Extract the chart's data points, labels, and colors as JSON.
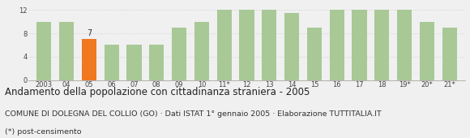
{
  "categories": [
    "2003",
    "04",
    "05",
    "06",
    "07",
    "08",
    "09",
    "10",
    "11*",
    "12",
    "13",
    "14",
    "15",
    "16",
    "17",
    "18",
    "19*",
    "20*",
    "21*"
  ],
  "values": [
    10,
    10,
    7,
    6,
    6,
    6,
    9,
    10,
    12,
    12,
    12,
    11.5,
    9,
    12,
    12,
    12,
    12,
    10,
    9
  ],
  "highlight_index": 2,
  "highlight_value": 7,
  "bar_color": "#a8c896",
  "highlight_color": "#f07820",
  "background_color": "#f0f0f0",
  "grid_color": "#cccccc",
  "ylim": [
    0,
    13
  ],
  "yticks": [
    0,
    4,
    8,
    12
  ],
  "title": "Andamento della popolazione con cittadinanza straniera - 2005",
  "subtitle": "COMUNE DI DOLEGNA DEL COLLIO (GO) · Dati ISTAT 1° gennaio 2005 · Elaborazione TUTTITALIA.IT",
  "footnote": "(*) post-censimento",
  "title_fontsize": 8.5,
  "subtitle_fontsize": 6.8,
  "footnote_fontsize": 6.8,
  "tick_fontsize": 6.0,
  "label_fontsize": 7.0
}
